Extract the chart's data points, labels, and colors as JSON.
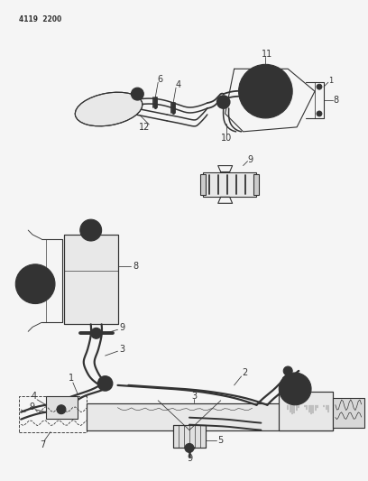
{
  "header_text": "4119  2200",
  "bg_color": "#f5f5f5",
  "line_color": "#333333",
  "lw": 0.8,
  "fs": 6.5
}
